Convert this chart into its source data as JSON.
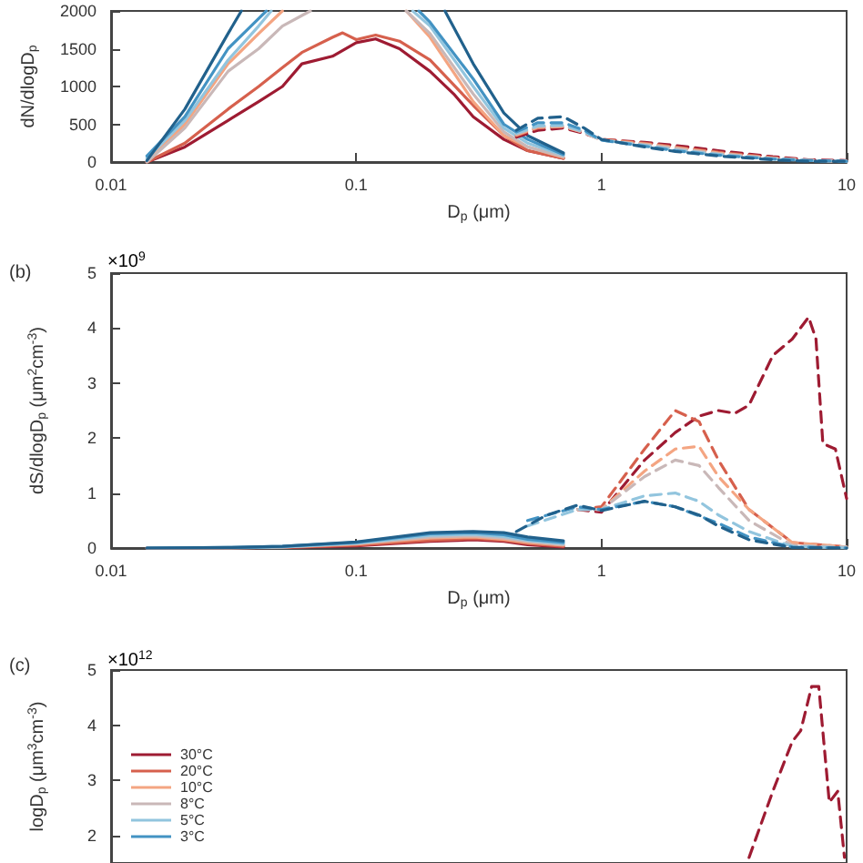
{
  "chart_data": [
    {
      "type": "line",
      "ylabel": "dN/dlogD$_{p}$",
      "xlabel": "D$_{p}$ (μm)",
      "log": "x",
      "xlim": [
        0.01,
        10
      ],
      "xticks": [
        0.01,
        0.1,
        1,
        10
      ],
      "ylim": [
        0,
        2000
      ],
      "yticks": [
        0,
        500,
        1000,
        1500,
        2000
      ],
      "grid": false,
      "legend": false,
      "series": [
        {
          "color": "#9e1b32",
          "line_style": "solid",
          "x": [
            0.014,
            0.02,
            0.03,
            0.04,
            0.05,
            0.06,
            0.08,
            0.1,
            0.12,
            0.15,
            0.2,
            0.25,
            0.3,
            0.4,
            0.5,
            0.7
          ],
          "values": [
            0,
            200,
            550,
            800,
            1000,
            1300,
            1400,
            1580,
            1630,
            1500,
            1200,
            900,
            600,
            300,
            150,
            50
          ]
        },
        {
          "color": "#d6604d",
          "line_style": "solid",
          "x": [
            0.014,
            0.02,
            0.03,
            0.04,
            0.05,
            0.06,
            0.08,
            0.088,
            0.1,
            0.12,
            0.15,
            0.2,
            0.3,
            0.4,
            0.5,
            0.7
          ],
          "values": [
            0,
            250,
            700,
            1000,
            1250,
            1450,
            1650,
            1710,
            1620,
            1680,
            1600,
            1350,
            750,
            350,
            150,
            50
          ]
        },
        {
          "color": "#f4a582",
          "line_style": "solid",
          "x": [
            0.014,
            0.02,
            0.03,
            0.04,
            0.05,
            0.1,
            0.16,
            0.2,
            0.3,
            0.4,
            0.5,
            0.7
          ],
          "values": [
            0,
            500,
            1300,
            1700,
            2000,
            null,
            2000,
            1650,
            800,
            350,
            200,
            60
          ]
        },
        {
          "color": "#c9b8b8",
          "line_style": "solid",
          "x": [
            0.014,
            0.02,
            0.03,
            0.04,
            0.05,
            0.065,
            0.1,
            0.16,
            0.2,
            0.3,
            0.4,
            0.5,
            0.7
          ],
          "values": [
            0,
            450,
            1200,
            1500,
            1800,
            2000,
            null,
            2000,
            1700,
            900,
            400,
            200,
            70
          ]
        },
        {
          "color": "#92c5de",
          "line_style": "solid",
          "x": [
            0.014,
            0.02,
            0.03,
            0.04,
            0.045,
            0.1,
            0.17,
            0.2,
            0.3,
            0.4,
            0.5,
            0.7
          ],
          "values": [
            50,
            550,
            1350,
            1800,
            2000,
            null,
            2000,
            1800,
            1000,
            450,
            250,
            90
          ]
        },
        {
          "color": "#4393c3",
          "line_style": "solid",
          "x": [
            0.014,
            0.02,
            0.03,
            0.04,
            0.043,
            0.1,
            0.18,
            0.2,
            0.3,
            0.4,
            0.5,
            0.7
          ],
          "values": [
            80,
            600,
            1500,
            1900,
            2000,
            null,
            2000,
            1850,
            1100,
            500,
            300,
            100
          ]
        },
        {
          "color": "#21618c",
          "line_style": "solid",
          "x": [
            0.014,
            0.02,
            0.03,
            0.034,
            0.1,
            0.23,
            0.3,
            0.4,
            0.5,
            0.7
          ],
          "values": [
            20,
            700,
            1700,
            2000,
            null,
            2000,
            1300,
            650,
            350,
            120
          ]
        },
        {
          "color": "#9e1b32",
          "line_style": "dashed",
          "x": [
            0.45,
            0.55,
            0.7,
            0.85,
            1,
            1.5,
            2,
            3,
            5,
            7,
            10
          ],
          "values": [
            330,
            420,
            450,
            380,
            300,
            260,
            220,
            150,
            70,
            30,
            20
          ]
        },
        {
          "color": "#d6604d",
          "line_style": "dashed",
          "x": [
            0.45,
            0.55,
            0.7,
            0.85,
            1,
            1.5,
            2,
            3,
            5,
            7,
            10
          ],
          "values": [
            350,
            450,
            470,
            390,
            300,
            250,
            200,
            130,
            60,
            20,
            10
          ]
        },
        {
          "color": "#f4a582",
          "line_style": "dashed",
          "x": [
            0.45,
            0.55,
            0.7,
            0.85,
            1,
            1.5,
            2,
            3,
            5,
            7,
            10
          ],
          "values": [
            360,
            460,
            470,
            390,
            290,
            240,
            190,
            120,
            50,
            20,
            10
          ]
        },
        {
          "color": "#c9b8b8",
          "line_style": "dashed",
          "x": [
            0.45,
            0.55,
            0.7,
            0.85,
            1,
            1.5,
            2,
            3,
            5,
            7,
            10
          ],
          "values": [
            370,
            470,
            480,
            390,
            290,
            230,
            180,
            110,
            50,
            20,
            10
          ]
        },
        {
          "color": "#92c5de",
          "line_style": "dashed",
          "x": [
            0.45,
            0.55,
            0.7,
            0.85,
            1,
            1.5,
            2,
            3,
            5,
            7,
            10
          ],
          "values": [
            380,
            480,
            490,
            400,
            290,
            220,
            160,
            100,
            40,
            20,
            10
          ]
        },
        {
          "color": "#4393c3",
          "line_style": "dashed",
          "x": [
            0.45,
            0.55,
            0.7,
            0.85,
            1,
            1.5,
            2,
            3,
            5,
            7,
            10
          ],
          "values": [
            400,
            520,
            520,
            420,
            290,
            210,
            150,
            90,
            40,
            20,
            10
          ]
        },
        {
          "color": "#21618c",
          "line_style": "dashed",
          "x": [
            0.45,
            0.55,
            0.7,
            0.85,
            1,
            1.5,
            2,
            3,
            5,
            7,
            10
          ],
          "values": [
            420,
            580,
            600,
            450,
            300,
            200,
            140,
            80,
            30,
            10,
            10
          ]
        }
      ]
    },
    {
      "type": "line",
      "title": "(b)",
      "ylabel": "dS/dlogD$_{p}$ (μm$^{2}$cm$^{-3}$)",
      "xlabel": "D$_{p}$ (μm)",
      "annotations": [
        "×10$^{9}$"
      ],
      "log": "x",
      "xlim": [
        0.01,
        10
      ],
      "xticks": [
        0.01,
        0.1,
        1,
        10
      ],
      "ylim": [
        0,
        5
      ],
      "yticks": [
        0,
        1,
        2,
        3,
        4,
        5
      ],
      "grid": false,
      "legend": false,
      "series": [
        {
          "color": "#9e1b32",
          "line_style": "solid",
          "x": [
            0.014,
            0.03,
            0.05,
            0.1,
            0.2,
            0.3,
            0.4,
            0.5,
            0.7
          ],
          "values": [
            0,
            0,
            0.01,
            0.04,
            0.12,
            0.15,
            0.12,
            0.06,
            0.02
          ]
        },
        {
          "color": "#d6604d",
          "line_style": "solid",
          "x": [
            0.014,
            0.03,
            0.05,
            0.1,
            0.2,
            0.3,
            0.4,
            0.5,
            0.7
          ],
          "values": [
            0,
            0,
            0.01,
            0.05,
            0.14,
            0.17,
            0.14,
            0.08,
            0.03
          ]
        },
        {
          "color": "#f4a582",
          "line_style": "solid",
          "x": [
            0.014,
            0.03,
            0.05,
            0.1,
            0.2,
            0.3,
            0.4,
            0.5,
            0.7
          ],
          "values": [
            0,
            0,
            0.02,
            0.07,
            0.18,
            0.2,
            0.16,
            0.1,
            0.05
          ]
        },
        {
          "color": "#c9b8b8",
          "line_style": "solid",
          "x": [
            0.014,
            0.03,
            0.05,
            0.1,
            0.2,
            0.3,
            0.4,
            0.5,
            0.7
          ],
          "values": [
            0,
            0,
            0.02,
            0.08,
            0.2,
            0.22,
            0.18,
            0.12,
            0.06
          ]
        },
        {
          "color": "#92c5de",
          "line_style": "solid",
          "x": [
            0.014,
            0.03,
            0.05,
            0.1,
            0.2,
            0.3,
            0.4,
            0.5,
            0.7
          ],
          "values": [
            0,
            0,
            0.02,
            0.09,
            0.23,
            0.25,
            0.21,
            0.14,
            0.08
          ]
        },
        {
          "color": "#4393c3",
          "line_style": "solid",
          "x": [
            0.014,
            0.03,
            0.05,
            0.1,
            0.2,
            0.3,
            0.4,
            0.5,
            0.7
          ],
          "values": [
            0,
            0.01,
            0.03,
            0.1,
            0.26,
            0.28,
            0.24,
            0.16,
            0.1
          ]
        },
        {
          "color": "#21618c",
          "line_style": "solid",
          "x": [
            0.014,
            0.03,
            0.05,
            0.1,
            0.2,
            0.3,
            0.4,
            0.5,
            0.7
          ],
          "values": [
            0,
            0.01,
            0.03,
            0.11,
            0.28,
            0.3,
            0.28,
            0.2,
            0.13
          ]
        },
        {
          "color": "#9e1b32",
          "line_style": "dashed",
          "x": [
            0.8,
            1,
            1.5,
            2,
            2.5,
            3,
            3.5,
            4,
            5,
            6,
            7,
            7.5,
            8,
            9,
            10
          ],
          "values": [
            0.7,
            0.65,
            1.6,
            2.1,
            2.4,
            2.5,
            2.45,
            2.6,
            3.5,
            3.8,
            4.2,
            3.8,
            1.9,
            1.8,
            0.9
          ]
        },
        {
          "color": "#d6604d",
          "line_style": "dashed",
          "x": [
            0.8,
            1,
            1.5,
            2,
            2.5,
            3,
            4,
            6,
            10
          ],
          "values": [
            0.7,
            0.75,
            1.8,
            2.5,
            2.3,
            1.6,
            0.7,
            0.1,
            0.02
          ]
        },
        {
          "color": "#f4a582",
          "line_style": "dashed",
          "x": [
            0.8,
            1,
            1.5,
            2,
            2.5,
            3,
            4,
            6,
            10
          ],
          "values": [
            0.7,
            0.7,
            1.4,
            1.8,
            1.85,
            1.3,
            0.7,
            0.1,
            0.02
          ]
        },
        {
          "color": "#c9b8b8",
          "line_style": "dashed",
          "x": [
            0.8,
            1,
            1.5,
            2,
            2.5,
            3,
            4,
            6,
            10
          ],
          "values": [
            0.7,
            0.7,
            1.3,
            1.6,
            1.5,
            1.1,
            0.5,
            0.05,
            0.02
          ]
        },
        {
          "color": "#92c5de",
          "line_style": "dashed",
          "x": [
            0.5,
            0.8,
            1,
            1.5,
            2,
            2.5,
            3,
            4,
            6,
            10
          ],
          "values": [
            0.4,
            0.7,
            0.7,
            0.95,
            1.0,
            0.85,
            0.6,
            0.3,
            0.03,
            0
          ]
        },
        {
          "color": "#4393c3",
          "line_style": "dashed",
          "x": [
            0.5,
            0.8,
            1,
            1.5,
            2,
            3,
            4,
            6,
            10
          ],
          "values": [
            0.5,
            0.75,
            0.7,
            0.85,
            0.75,
            0.45,
            0.2,
            0.02,
            0
          ]
        },
        {
          "color": "#21618c",
          "line_style": "dashed",
          "x": [
            0.45,
            0.6,
            0.8,
            1,
            1.5,
            2,
            2.5,
            3,
            4,
            6,
            10
          ],
          "values": [
            0.3,
            0.6,
            0.78,
            0.68,
            0.85,
            0.75,
            0.6,
            0.4,
            0.15,
            0.01,
            0
          ]
        }
      ]
    },
    {
      "type": "line",
      "title": "(c)",
      "ylabel": "logD$_{p}$ (μm$^{3}$cm$^{-3}$)",
      "annotations": [
        "×10$^{12}$"
      ],
      "log": "x",
      "xlim": [
        0.01,
        10
      ],
      "ylim": [
        1.5,
        5
      ],
      "yticks": [
        2,
        3,
        4,
        5
      ],
      "tick_labels": "y",
      "grid": false,
      "legend": "left",
      "series": [
        {
          "name": "30°C",
          "color": "#9e1b32",
          "line_style": "solid"
        },
        {
          "name": "20°C",
          "color": "#d6604d",
          "line_style": "solid"
        },
        {
          "name": "10°C",
          "color": "#f4a582",
          "line_style": "solid"
        },
        {
          "name": "8°C",
          "color": "#c9b8b8",
          "line_style": "solid"
        },
        {
          "name": "5°C",
          "color": "#92c5de",
          "line_style": "solid"
        },
        {
          "name": "3°C",
          "color": "#4393c3",
          "line_style": "solid"
        },
        {
          "color": "#9e1b32",
          "line_style": "dashed",
          "x": [
            4,
            5,
            6,
            6.5,
            7.2,
            7.7,
            8.5,
            9.2,
            9.8
          ],
          "values": [
            1.6,
            2.8,
            3.7,
            3.9,
            4.7,
            4.7,
            2.6,
            2.8,
            1.6
          ]
        }
      ]
    }
  ]
}
